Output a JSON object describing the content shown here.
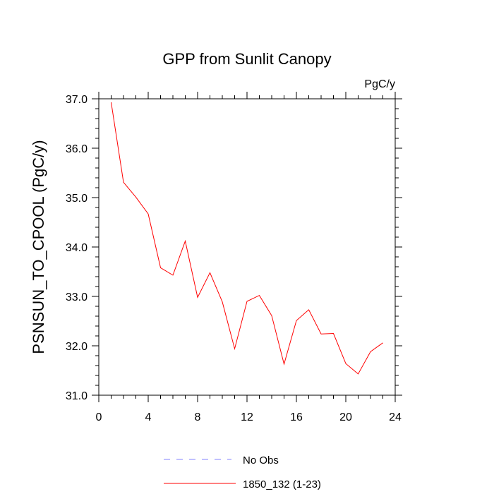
{
  "chart_data": {
    "type": "line",
    "title": "GPP from Sunlit Canopy",
    "units_label": "PgC/y",
    "ylabel": "PSNSUN_TO_CPOOL  (PgC/y)",
    "xlabel": "",
    "xlim": [
      0,
      24
    ],
    "ylim": [
      31.0,
      37.0
    ],
    "xticks": [
      0,
      4,
      8,
      12,
      16,
      20,
      24
    ],
    "xtick_labels": [
      "0",
      "4",
      "8",
      "12",
      "16",
      "20",
      "24"
    ],
    "yticks": [
      31.0,
      32.0,
      33.0,
      34.0,
      35.0,
      36.0,
      37.0
    ],
    "ytick_labels": [
      "31.0",
      "32.0",
      "33.0",
      "34.0",
      "35.0",
      "36.0",
      "37.0"
    ],
    "series": [
      {
        "name": "1850_132 (1-23)",
        "color": "#ff0000",
        "x": [
          1,
          2,
          3,
          4,
          5,
          6,
          7,
          8,
          9,
          10,
          11,
          12,
          13,
          14,
          15,
          16,
          17,
          18,
          19,
          20,
          21,
          22,
          23
        ],
        "y": [
          36.93,
          35.31,
          35.01,
          34.67,
          33.58,
          33.43,
          34.12,
          32.98,
          33.48,
          32.89,
          31.94,
          32.9,
          33.02,
          32.61,
          31.63,
          32.51,
          32.73,
          32.24,
          32.25,
          31.64,
          31.43,
          31.88,
          32.06
        ]
      }
    ],
    "legend": [
      {
        "label": "No Obs",
        "color": "#8080ff",
        "style": "dashed"
      },
      {
        "label": "1850_132 (1-23)",
        "color": "#ff0000",
        "style": "solid"
      }
    ]
  }
}
